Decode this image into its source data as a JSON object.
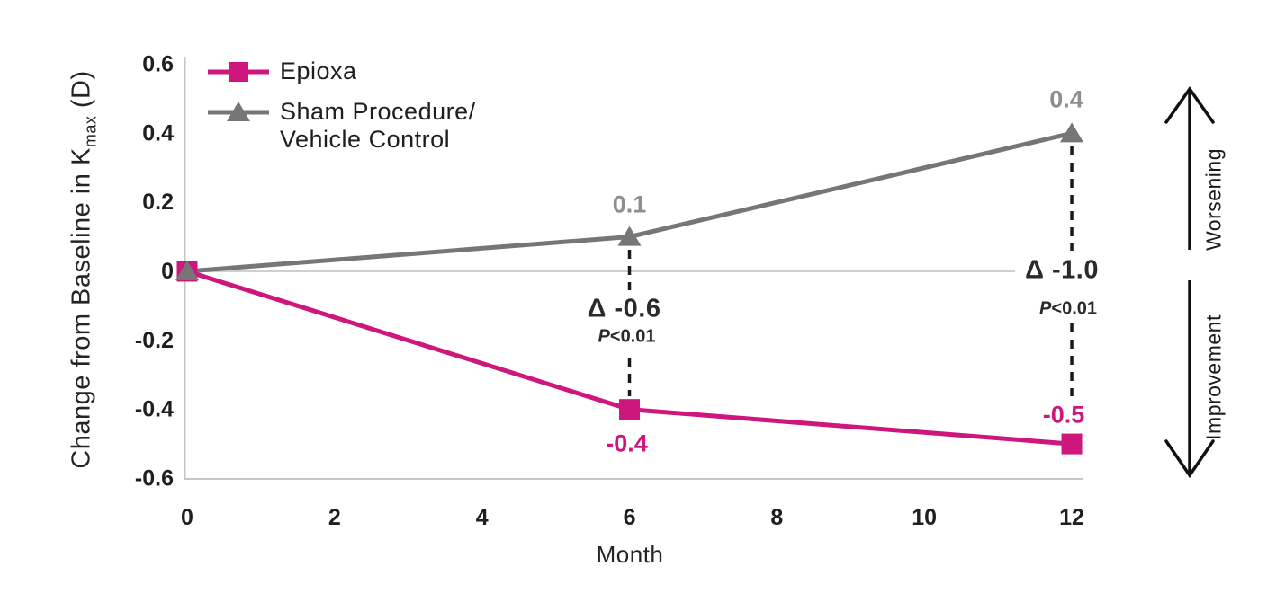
{
  "chart_data": {
    "type": "line",
    "title": "",
    "xlabel": "Month",
    "ylabel": {
      "prefix": "Change from Baseline in K",
      "subscript": "max",
      "suffix": " (D)"
    },
    "x_ticks": [
      "0",
      "2",
      "4",
      "6",
      "8",
      "10",
      "12"
    ],
    "y_ticks": [
      "0.6",
      "0.4",
      "0.2",
      "0",
      "-0.2",
      "-0.4",
      "-0.6"
    ],
    "xlim": [
      0,
      12
    ],
    "ylim": [
      -0.6,
      0.6
    ],
    "grid": false,
    "legend_position": "top-left",
    "series": [
      {
        "name": "Epioxa",
        "marker": "square",
        "color": "#ce177d",
        "label_color": "#ce177d",
        "x": [
          0,
          6,
          12
        ],
        "values": [
          0,
          -0.4,
          -0.5
        ],
        "point_labels": [
          "",
          "-0.4",
          "-0.5"
        ]
      },
      {
        "name": "Sham Procedure/ Vehicle Control",
        "marker": "triangle",
        "color": "#767676",
        "label_color": "#8e8e8e",
        "x": [
          0,
          6,
          12
        ],
        "values": [
          0,
          0.1,
          0.4
        ],
        "point_labels": [
          "",
          "0.1",
          "0.4"
        ]
      }
    ],
    "annotations": [
      {
        "month": 6,
        "delta": "Δ -0.6",
        "p_italic": "P",
        "p_rest": "<0.01"
      },
      {
        "month": 12,
        "delta": "Δ -1.0",
        "p_italic": "P",
        "p_rest": "<0.01"
      }
    ],
    "direction_arrows": [
      {
        "label": "Worsening",
        "direction": "up"
      },
      {
        "label": "Improvement",
        "direction": "down"
      }
    ]
  },
  "legend": {
    "items": [
      {
        "label_lines": [
          "Epioxa"
        ],
        "marker": "square"
      },
      {
        "label_lines": [
          "Sham Procedure/",
          "Vehicle Control"
        ],
        "marker": "triangle"
      }
    ]
  },
  "colors": {
    "epioxa": "#ce177d",
    "sham": "#767676",
    "sham_label": "#8e8e8e",
    "axis_line": "#c6c6c6",
    "zero_line": "#cfcfcf",
    "tick_text": "#1f1f1f",
    "dash_line": "#1a1a1a",
    "arrow": "#111111"
  }
}
